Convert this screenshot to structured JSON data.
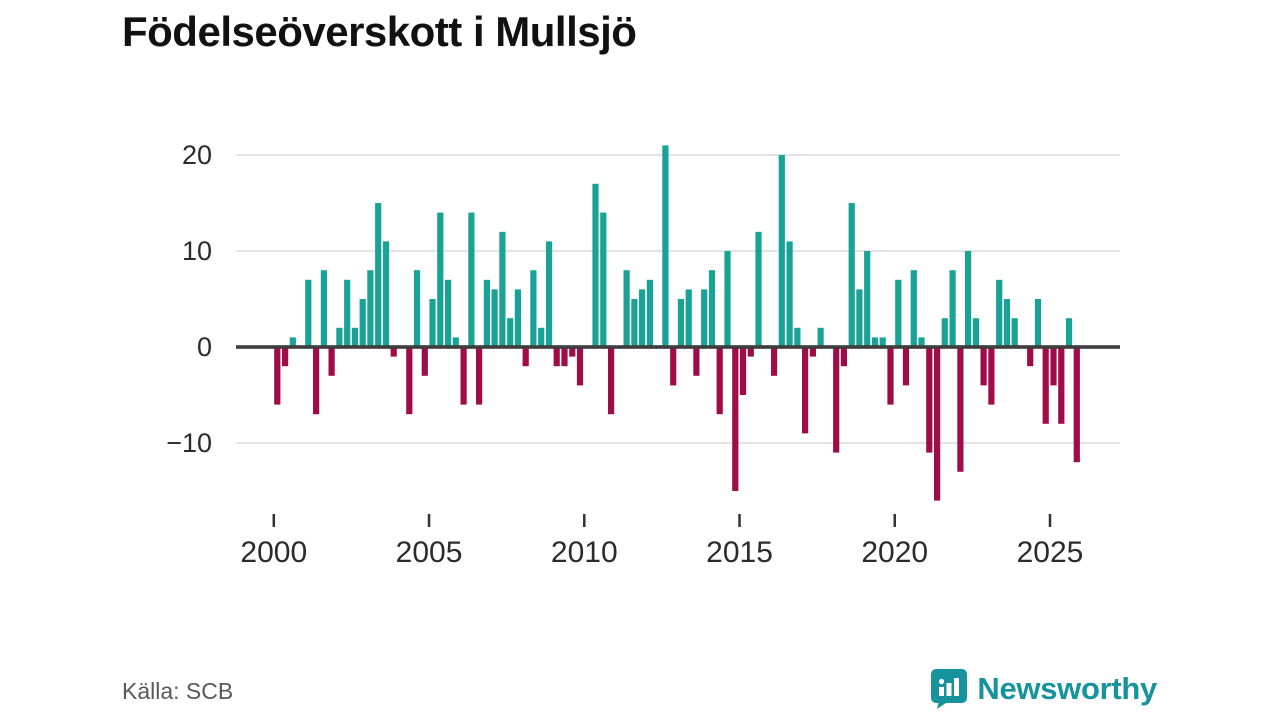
{
  "title": "Födelseöverskott i Mullsjö",
  "source": "Källa: SCB",
  "brand": {
    "name": "Newsworthy",
    "color": "#16939c",
    "icon_color": "#16939c"
  },
  "colors": {
    "positive": "#19a296",
    "negative": "#a00c48",
    "grid": "#e4e4e4",
    "zero_axis": "#3d3d3d",
    "tick_text": "#2b2b2b",
    "tick_mark": "#333333"
  },
  "chart_data": {
    "type": "bar",
    "title": "Födelseöverskott i Mullsjö",
    "frequency": "quarterly",
    "start_year": 2000,
    "x_ticks": [
      2000,
      2005,
      2010,
      2015,
      2020,
      2025
    ],
    "y_ticks": [
      20,
      10,
      0,
      -10
    ],
    "ylim": [
      -17,
      22
    ],
    "grid": true,
    "legend": "none",
    "values": [
      -6,
      -2,
      1,
      0,
      7,
      -7,
      8,
      -3,
      2,
      7,
      2,
      5,
      8,
      15,
      11,
      -1,
      0,
      -7,
      8,
      -3,
      5,
      14,
      7,
      1,
      -6,
      14,
      -6,
      7,
      6,
      12,
      3,
      6,
      -2,
      8,
      2,
      11,
      -2,
      -2,
      -1,
      -4,
      0,
      17,
      14,
      -7,
      0,
      8,
      5,
      6,
      7,
      0,
      21,
      -4,
      5,
      6,
      -3,
      6,
      8,
      -7,
      10,
      -15,
      -5,
      -1,
      12,
      0,
      -3,
      20,
      11,
      2,
      -9,
      -1,
      2,
      0,
      -11,
      -2,
      15,
      6,
      10,
      1,
      1,
      -6,
      7,
      -4,
      8,
      1,
      -11,
      -16,
      3,
      8,
      -13,
      10,
      3,
      -4,
      -6,
      7,
      5,
      3,
      0,
      -2,
      5,
      -8,
      -4,
      -8,
      3,
      -12
    ]
  }
}
